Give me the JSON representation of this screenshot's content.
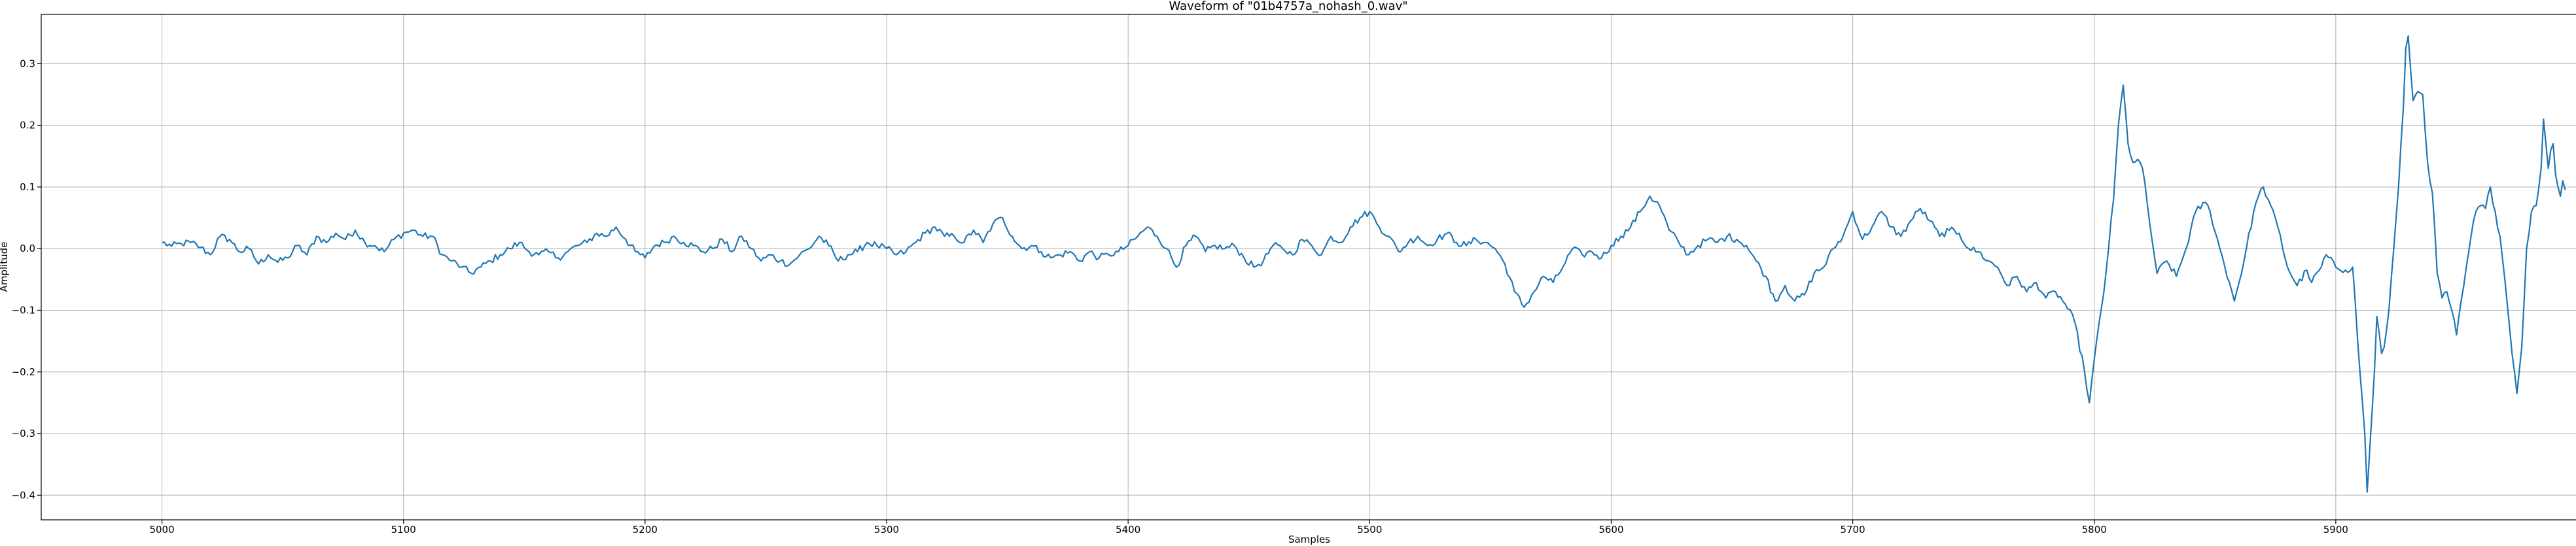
{
  "chart_data": {
    "type": "line",
    "title": "Waveform of \"01b4757a_nohash_0.wav\"",
    "xlabel": "Samples",
    "ylabel": "Amplitude",
    "xlim": [
      4950,
      6000
    ],
    "ylim": [
      -0.44,
      0.38
    ],
    "x_ticks": [
      5000,
      5100,
      5200,
      5300,
      5400,
      5500,
      5600,
      5700,
      5800,
      5900
    ],
    "x_tick_labels": [
      "5000",
      "5100",
      "5200",
      "5300",
      "5400",
      "5500",
      "5600",
      "5700",
      "5800",
      "5900"
    ],
    "y_ticks": [
      -0.4,
      -0.3,
      -0.2,
      -0.1,
      0.0,
      0.1,
      0.2,
      0.3
    ],
    "y_tick_labels": [
      "−0.4",
      "−0.3",
      "−0.2",
      "−0.1",
      "0.0",
      "0.1",
      "0.2",
      "0.3"
    ],
    "grid": true,
    "series": [
      {
        "color": "#1f77b4",
        "x_start": 5000,
        "x_end": 5999,
        "keypoints": [
          [
            5000,
            0.01
          ],
          [
            5004,
            0.004
          ],
          [
            5008,
            0.008
          ],
          [
            5012,
            0.01
          ],
          [
            5016,
            0.002
          ],
          [
            5020,
            -0.01
          ],
          [
            5024,
            0.02
          ],
          [
            5028,
            0.015
          ],
          [
            5032,
            -0.005
          ],
          [
            5036,
            0.0
          ],
          [
            5040,
            -0.025
          ],
          [
            5044,
            -0.01
          ],
          [
            5048,
            -0.022
          ],
          [
            5052,
            -0.015
          ],
          [
            5056,
            0.005
          ],
          [
            5060,
            -0.01
          ],
          [
            5064,
            0.02
          ],
          [
            5068,
            0.01
          ],
          [
            5072,
            0.025
          ],
          [
            5076,
            0.015
          ],
          [
            5080,
            0.03
          ],
          [
            5084,
            0.01
          ],
          [
            5088,
            0.005
          ],
          [
            5092,
            -0.005
          ],
          [
            5096,
            0.015
          ],
          [
            5100,
            0.025
          ],
          [
            5104,
            0.03
          ],
          [
            5108,
            0.02
          ],
          [
            5112,
            0.02
          ],
          [
            5116,
            -0.01
          ],
          [
            5120,
            -0.02
          ],
          [
            5124,
            -0.03
          ],
          [
            5128,
            -0.04
          ],
          [
            5132,
            -0.03
          ],
          [
            5136,
            -0.02
          ],
          [
            5140,
            -0.01
          ],
          [
            5144,
            0.0
          ],
          [
            5148,
            0.01
          ],
          [
            5152,
            -0.005
          ],
          [
            5156,
            -0.01
          ],
          [
            5160,
            -0.005
          ],
          [
            5164,
            -0.015
          ],
          [
            5168,
            -0.005
          ],
          [
            5172,
            0.005
          ],
          [
            5176,
            0.01
          ],
          [
            5180,
            0.025
          ],
          [
            5184,
            0.02
          ],
          [
            5188,
            0.035
          ],
          [
            5192,
            0.015
          ],
          [
            5196,
            -0.005
          ],
          [
            5200,
            -0.015
          ],
          [
            5204,
            0.005
          ],
          [
            5208,
            0.01
          ],
          [
            5212,
            0.02
          ],
          [
            5216,
            0.01
          ],
          [
            5220,
            0.005
          ],
          [
            5224,
            -0.005
          ],
          [
            5228,
            0.0
          ],
          [
            5232,
            0.015
          ],
          [
            5236,
            -0.005
          ],
          [
            5240,
            0.02
          ],
          [
            5244,
            0.0
          ],
          [
            5248,
            -0.02
          ],
          [
            5252,
            -0.01
          ],
          [
            5256,
            -0.02
          ],
          [
            5260,
            -0.025
          ],
          [
            5264,
            -0.01
          ],
          [
            5268,
            0.0
          ],
          [
            5272,
            0.02
          ],
          [
            5276,
            0.005
          ],
          [
            5280,
            -0.02
          ],
          [
            5284,
            -0.01
          ],
          [
            5288,
            -0.005
          ],
          [
            5292,
            0.01
          ],
          [
            5296,
            0.005
          ],
          [
            5300,
            0.0
          ],
          [
            5304,
            -0.01
          ],
          [
            5308,
            -0.005
          ],
          [
            5312,
            0.01
          ],
          [
            5316,
            0.025
          ],
          [
            5320,
            0.035
          ],
          [
            5324,
            0.02
          ],
          [
            5328,
            0.02
          ],
          [
            5332,
            0.01
          ],
          [
            5336,
            0.03
          ],
          [
            5340,
            0.01
          ],
          [
            5344,
            0.04
          ],
          [
            5348,
            0.05
          ],
          [
            5352,
            0.02
          ],
          [
            5356,
            0.0
          ],
          [
            5360,
            0.005
          ],
          [
            5364,
            -0.005
          ],
          [
            5368,
            -0.015
          ],
          [
            5372,
            -0.01
          ],
          [
            5376,
            -0.005
          ],
          [
            5380,
            -0.02
          ],
          [
            5384,
            -0.005
          ],
          [
            5388,
            -0.015
          ],
          [
            5392,
            -0.01
          ],
          [
            5396,
            -0.005
          ],
          [
            5400,
            0.005
          ],
          [
            5404,
            0.02
          ],
          [
            5408,
            0.035
          ],
          [
            5412,
            0.02
          ],
          [
            5416,
            0.0
          ],
          [
            5420,
            -0.03
          ],
          [
            5424,
            0.005
          ],
          [
            5428,
            0.02
          ],
          [
            5432,
            -0.005
          ],
          [
            5436,
            0.005
          ],
          [
            5440,
            0.0
          ],
          [
            5444,
            0.005
          ],
          [
            5448,
            -0.015
          ],
          [
            5452,
            -0.03
          ],
          [
            5456,
            -0.02
          ],
          [
            5460,
            0.005
          ],
          [
            5464,
            0.0
          ],
          [
            5468,
            -0.01
          ],
          [
            5472,
            0.015
          ],
          [
            5476,
            0.005
          ],
          [
            5480,
            -0.01
          ],
          [
            5484,
            0.02
          ],
          [
            5488,
            0.01
          ],
          [
            5492,
            0.035
          ],
          [
            5496,
            0.05
          ],
          [
            5500,
            0.06
          ],
          [
            5504,
            0.035
          ],
          [
            5508,
            0.02
          ],
          [
            5512,
            -0.005
          ],
          [
            5516,
            0.01
          ],
          [
            5520,
            0.02
          ],
          [
            5524,
            0.005
          ],
          [
            5528,
            0.015
          ],
          [
            5532,
            0.025
          ],
          [
            5536,
            0.01
          ],
          [
            5540,
            0.005
          ],
          [
            5544,
            0.015
          ],
          [
            5548,
            0.01
          ],
          [
            5552,
            0.0
          ],
          [
            5556,
            -0.025
          ],
          [
            5560,
            -0.07
          ],
          [
            5564,
            -0.095
          ],
          [
            5568,
            -0.07
          ],
          [
            5572,
            -0.045
          ],
          [
            5576,
            -0.055
          ],
          [
            5580,
            -0.03
          ],
          [
            5584,
            0.0
          ],
          [
            5588,
            -0.01
          ],
          [
            5592,
            -0.005
          ],
          [
            5596,
            -0.015
          ],
          [
            5600,
            0.005
          ],
          [
            5604,
            0.02
          ],
          [
            5608,
            0.035
          ],
          [
            5612,
            0.06
          ],
          [
            5616,
            0.085
          ],
          [
            5620,
            0.07
          ],
          [
            5624,
            0.03
          ],
          [
            5628,
            0.01
          ],
          [
            5632,
            -0.01
          ],
          [
            5636,
            0.005
          ],
          [
            5640,
            0.015
          ],
          [
            5644,
            0.01
          ],
          [
            5648,
            0.02
          ],
          [
            5652,
            0.015
          ],
          [
            5656,
            0.005
          ],
          [
            5660,
            -0.02
          ],
          [
            5664,
            -0.045
          ],
          [
            5668,
            -0.085
          ],
          [
            5672,
            -0.06
          ],
          [
            5676,
            -0.085
          ],
          [
            5680,
            -0.075
          ],
          [
            5684,
            -0.04
          ],
          [
            5688,
            -0.03
          ],
          [
            5692,
            0.0
          ],
          [
            5696,
            0.02
          ],
          [
            5700,
            0.06
          ],
          [
            5704,
            0.015
          ],
          [
            5708,
            0.035
          ],
          [
            5712,
            0.06
          ],
          [
            5716,
            0.035
          ],
          [
            5720,
            0.02
          ],
          [
            5724,
            0.045
          ],
          [
            5728,
            0.065
          ],
          [
            5732,
            0.045
          ],
          [
            5736,
            0.02
          ],
          [
            5740,
            0.03
          ],
          [
            5744,
            0.025
          ],
          [
            5748,
            0.0
          ],
          [
            5752,
            -0.005
          ],
          [
            5756,
            -0.02
          ],
          [
            5760,
            -0.03
          ],
          [
            5764,
            -0.06
          ],
          [
            5768,
            -0.045
          ],
          [
            5772,
            -0.07
          ],
          [
            5776,
            -0.055
          ],
          [
            5780,
            -0.08
          ],
          [
            5784,
            -0.07
          ],
          [
            5788,
            -0.09
          ],
          [
            5792,
            -0.12
          ],
          [
            5796,
            -0.2
          ],
          [
            5798,
            -0.25
          ],
          [
            5800,
            -0.18
          ],
          [
            5804,
            -0.07
          ],
          [
            5808,
            0.08
          ],
          [
            5810,
            0.2
          ],
          [
            5812,
            0.265
          ],
          [
            5814,
            0.17
          ],
          [
            5816,
            0.14
          ],
          [
            5818,
            0.145
          ],
          [
            5820,
            0.13
          ],
          [
            5823,
            0.04
          ],
          [
            5826,
            -0.04
          ],
          [
            5830,
            -0.02
          ],
          [
            5834,
            -0.045
          ],
          [
            5838,
            0.0
          ],
          [
            5842,
            0.06
          ],
          [
            5846,
            0.075
          ],
          [
            5848,
            0.06
          ],
          [
            5852,
            0.0
          ],
          [
            5856,
            -0.055
          ],
          [
            5858,
            -0.085
          ],
          [
            5862,
            -0.02
          ],
          [
            5866,
            0.06
          ],
          [
            5868,
            0.085
          ],
          [
            5870,
            0.1
          ],
          [
            5872,
            0.08
          ],
          [
            5876,
            0.035
          ],
          [
            5880,
            -0.03
          ],
          [
            5884,
            -0.06
          ],
          [
            5888,
            -0.035
          ],
          [
            5890,
            -0.055
          ],
          [
            5894,
            -0.03
          ],
          [
            5896,
            -0.01
          ],
          [
            5900,
            -0.03
          ],
          [
            5904,
            -0.035
          ],
          [
            5907,
            -0.03
          ],
          [
            5910,
            -0.2
          ],
          [
            5912,
            -0.3
          ],
          [
            5913,
            -0.395
          ],
          [
            5914,
            -0.33
          ],
          [
            5916,
            -0.2
          ],
          [
            5917,
            -0.11
          ],
          [
            5919,
            -0.17
          ],
          [
            5920,
            -0.16
          ],
          [
            5922,
            -0.1
          ],
          [
            5924,
            0.0
          ],
          [
            5926,
            0.1
          ],
          [
            5928,
            0.23
          ],
          [
            5929,
            0.325
          ],
          [
            5930,
            0.345
          ],
          [
            5932,
            0.24
          ],
          [
            5934,
            0.255
          ],
          [
            5936,
            0.25
          ],
          [
            5938,
            0.14
          ],
          [
            5940,
            0.09
          ],
          [
            5942,
            -0.04
          ],
          [
            5944,
            -0.08
          ],
          [
            5946,
            -0.07
          ],
          [
            5948,
            -0.1
          ],
          [
            5950,
            -0.14
          ],
          [
            5953,
            -0.06
          ],
          [
            5956,
            0.02
          ],
          [
            5958,
            0.06
          ],
          [
            5960,
            0.07
          ],
          [
            5962,
            0.065
          ],
          [
            5964,
            0.1
          ],
          [
            5966,
            0.06
          ],
          [
            5968,
            0.02
          ],
          [
            5970,
            -0.05
          ],
          [
            5972,
            -0.13
          ],
          [
            5974,
            -0.2
          ],
          [
            5975,
            -0.235
          ],
          [
            5977,
            -0.16
          ],
          [
            5979,
            0.0
          ],
          [
            5981,
            0.06
          ],
          [
            5983,
            0.07
          ],
          [
            5985,
            0.13
          ],
          [
            5986,
            0.21
          ],
          [
            5987,
            0.17
          ],
          [
            5988,
            0.13
          ],
          [
            5989,
            0.16
          ],
          [
            5990,
            0.17
          ],
          [
            5991,
            0.12
          ],
          [
            5992,
            0.1
          ],
          [
            5993,
            0.085
          ],
          [
            5994,
            0.11
          ],
          [
            5995,
            0.095
          ]
        ]
      }
    ]
  }
}
